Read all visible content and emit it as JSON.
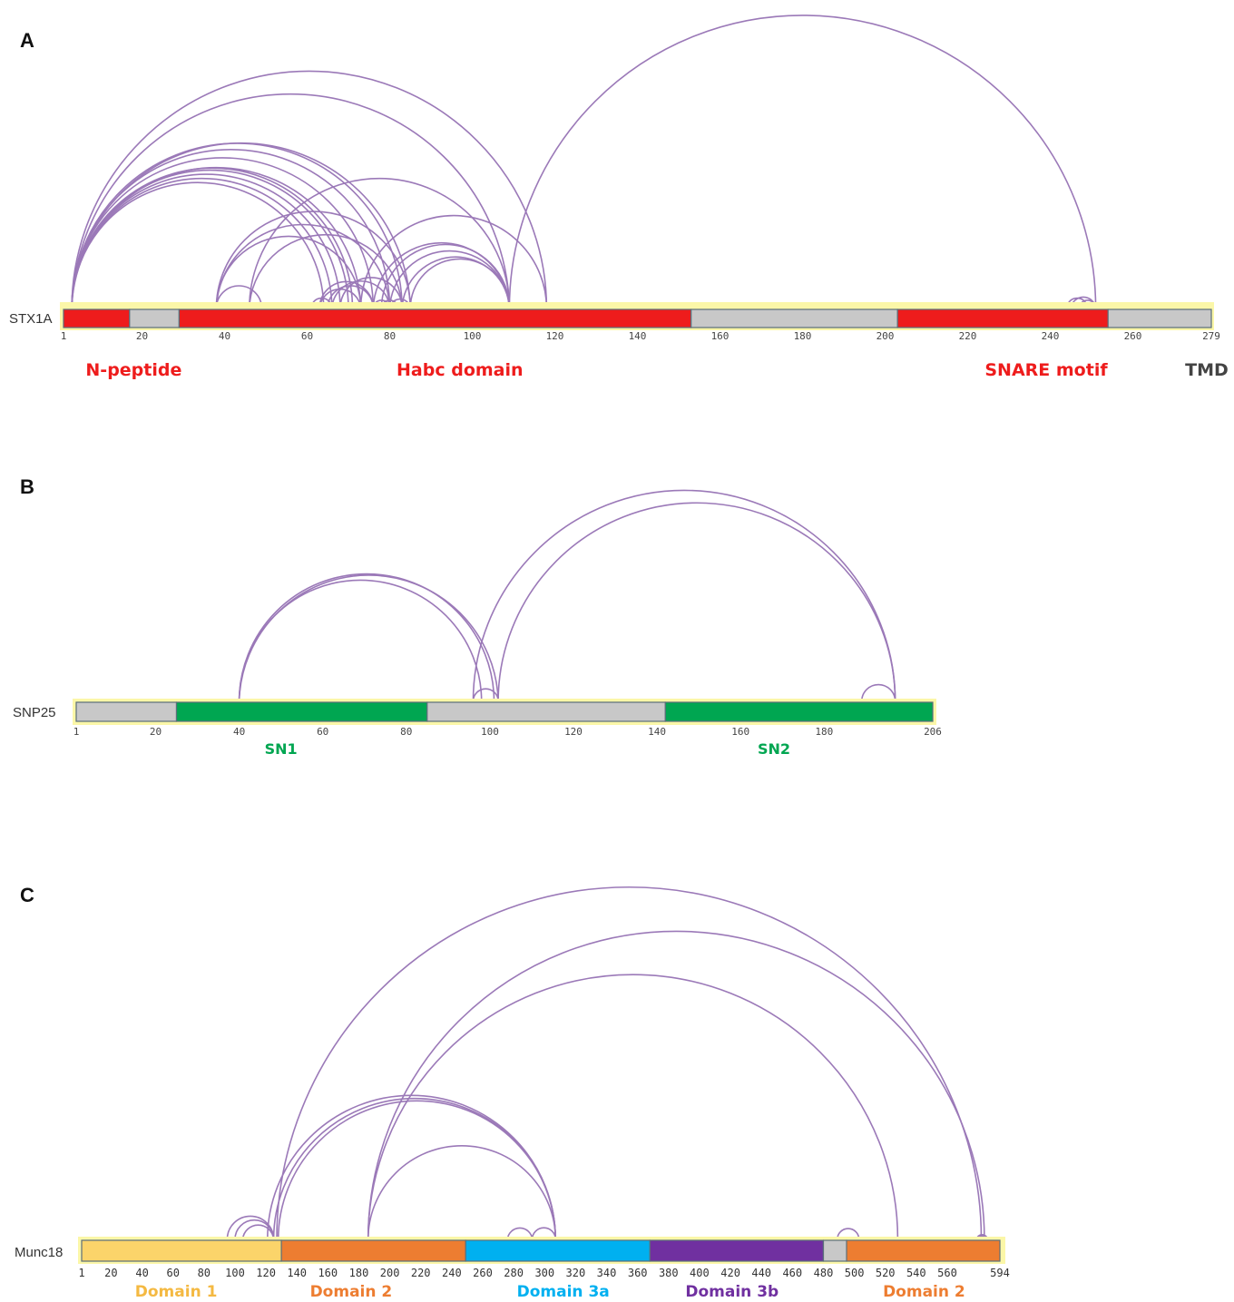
{
  "panels": [
    {
      "id": "A",
      "letter": "A",
      "protein": "STX1A",
      "length": 279,
      "ticks": [
        "1",
        "20",
        "40",
        "60",
        "80",
        "100",
        "120",
        "140",
        "160",
        "180",
        "200",
        "220",
        "240",
        "260",
        "279"
      ],
      "tick_values": [
        1,
        20,
        40,
        60,
        80,
        100,
        120,
        140,
        160,
        180,
        200,
        220,
        240,
        260,
        279
      ],
      "segments": [
        {
          "start": 1,
          "end": 17,
          "color": "#ee1c1c"
        },
        {
          "start": 17,
          "end": 29,
          "color": "#c8c8c8"
        },
        {
          "start": 29,
          "end": 153,
          "color": "#ee1c1c"
        },
        {
          "start": 153,
          "end": 203,
          "color": "#c8c8c8"
        },
        {
          "start": 203,
          "end": 254,
          "color": "#ee1c1c"
        },
        {
          "start": 254,
          "end": 279,
          "color": "#c8c8c8"
        }
      ],
      "domain_labels": [
        {
          "text": "N-peptide",
          "color": "#ee1c1c",
          "center": 18
        },
        {
          "text": "Habc domain",
          "color": "#ee1c1c",
          "center": 97
        },
        {
          "text": "SNARE motif",
          "color": "#ee1c1c",
          "center": 239
        },
        {
          "text": "TMD",
          "color": "#444444",
          "center": 287
        }
      ],
      "crosslinks": [
        [
          3,
          118
        ],
        [
          3,
          109
        ],
        [
          3,
          85
        ],
        [
          3,
          83
        ],
        [
          3,
          80
        ],
        [
          3,
          76
        ],
        [
          3,
          73
        ],
        [
          3,
          71
        ],
        [
          3,
          70
        ],
        [
          3,
          68
        ],
        [
          3,
          66
        ],
        [
          3,
          64
        ],
        [
          38,
          85
        ],
        [
          38,
          80
        ],
        [
          38,
          73
        ],
        [
          38,
          49
        ],
        [
          46,
          109
        ],
        [
          46,
          83
        ],
        [
          63,
          76
        ],
        [
          63,
          73
        ],
        [
          65,
          76
        ],
        [
          61,
          66
        ],
        [
          66,
          80
        ],
        [
          68,
          83
        ],
        [
          73,
          118
        ],
        [
          76,
          109
        ],
        [
          78,
          109
        ],
        [
          80,
          109
        ],
        [
          83,
          109
        ],
        [
          85,
          109
        ],
        [
          78,
          82
        ],
        [
          80,
          85
        ],
        [
          76,
          80
        ],
        [
          83,
          85
        ],
        [
          109,
          251
        ],
        [
          244,
          249
        ],
        [
          245,
          251
        ],
        [
          247,
          251
        ]
      ]
    },
    {
      "id": "B",
      "letter": "B",
      "protein": "SNP25",
      "length": 206,
      "ticks": [
        "1",
        "20",
        "40",
        "60",
        "80",
        "100",
        "120",
        "140",
        "160",
        "180",
        "206"
      ],
      "tick_values": [
        1,
        20,
        40,
        60,
        80,
        100,
        120,
        140,
        160,
        180,
        206
      ],
      "segments": [
        {
          "start": 1,
          "end": 25,
          "color": "#c8c8c8"
        },
        {
          "start": 25,
          "end": 85,
          "color": "#00a651"
        },
        {
          "start": 85,
          "end": 142,
          "color": "#c8c8c8"
        },
        {
          "start": 142,
          "end": 206,
          "color": "#00a651"
        }
      ],
      "domain_labels": [
        {
          "text": "SN1",
          "color": "#00a651",
          "center": 50
        },
        {
          "text": "SN2",
          "color": "#00a651",
          "center": 168
        }
      ],
      "crosslinks": [
        [
          40,
          102
        ],
        [
          40,
          101
        ],
        [
          40,
          98
        ],
        [
          96,
          197
        ],
        [
          96,
          102
        ],
        [
          102,
          197
        ],
        [
          189,
          197
        ]
      ]
    },
    {
      "id": "C",
      "letter": "C",
      "protein": "Munc18",
      "length": 594,
      "ticks": [
        "1",
        "20",
        "40",
        "60",
        "80",
        "100",
        "120",
        "140",
        "160",
        "180",
        "200",
        "220",
        "240",
        "260",
        "280",
        "300",
        "320",
        "340",
        "360",
        "380",
        "400",
        "420",
        "440",
        "460",
        "480",
        "500",
        "520",
        "540",
        "560",
        "594"
      ],
      "tick_values": [
        1,
        20,
        40,
        60,
        80,
        100,
        120,
        140,
        160,
        180,
        200,
        220,
        240,
        260,
        280,
        300,
        320,
        340,
        360,
        380,
        400,
        420,
        440,
        460,
        480,
        500,
        520,
        540,
        560,
        594
      ],
      "segments": [
        {
          "start": 1,
          "end": 130,
          "color": "#fbd46a"
        },
        {
          "start": 130,
          "end": 249,
          "color": "#ed7d31"
        },
        {
          "start": 249,
          "end": 368,
          "color": "#00b0f0"
        },
        {
          "start": 368,
          "end": 480,
          "color": "#7030a0"
        },
        {
          "start": 480,
          "end": 495,
          "color": "#c8c8c8"
        },
        {
          "start": 495,
          "end": 594,
          "color": "#ed7d31"
        }
      ],
      "domain_labels": [
        {
          "text": "Domain 1",
          "color": "#f4b942",
          "center": 62
        },
        {
          "text": "Domain 2",
          "color": "#ed7d31",
          "center": 175
        },
        {
          "text": "Domain 3a",
          "color": "#00b0f0",
          "center": 312
        },
        {
          "text": "Domain 3b",
          "color": "#7030a0",
          "center": 421
        },
        {
          "text": "Domain 2",
          "color": "#ed7d31",
          "center": 545
        }
      ],
      "crosslinks": [
        [
          127,
          582
        ],
        [
          186,
          584
        ],
        [
          186,
          528
        ],
        [
          121,
          307
        ],
        [
          125,
          307
        ],
        [
          128,
          307
        ],
        [
          186,
          307
        ],
        [
          292,
          307
        ],
        [
          95,
          125
        ],
        [
          100,
          125
        ],
        [
          105,
          125
        ],
        [
          276,
          292
        ],
        [
          489,
          503
        ],
        [
          579,
          586
        ],
        [
          580,
          585
        ]
      ]
    }
  ],
  "colors": {
    "arc": "#9b79b8",
    "halo": "#fbf7a8",
    "outline": "#5a6e7a"
  }
}
